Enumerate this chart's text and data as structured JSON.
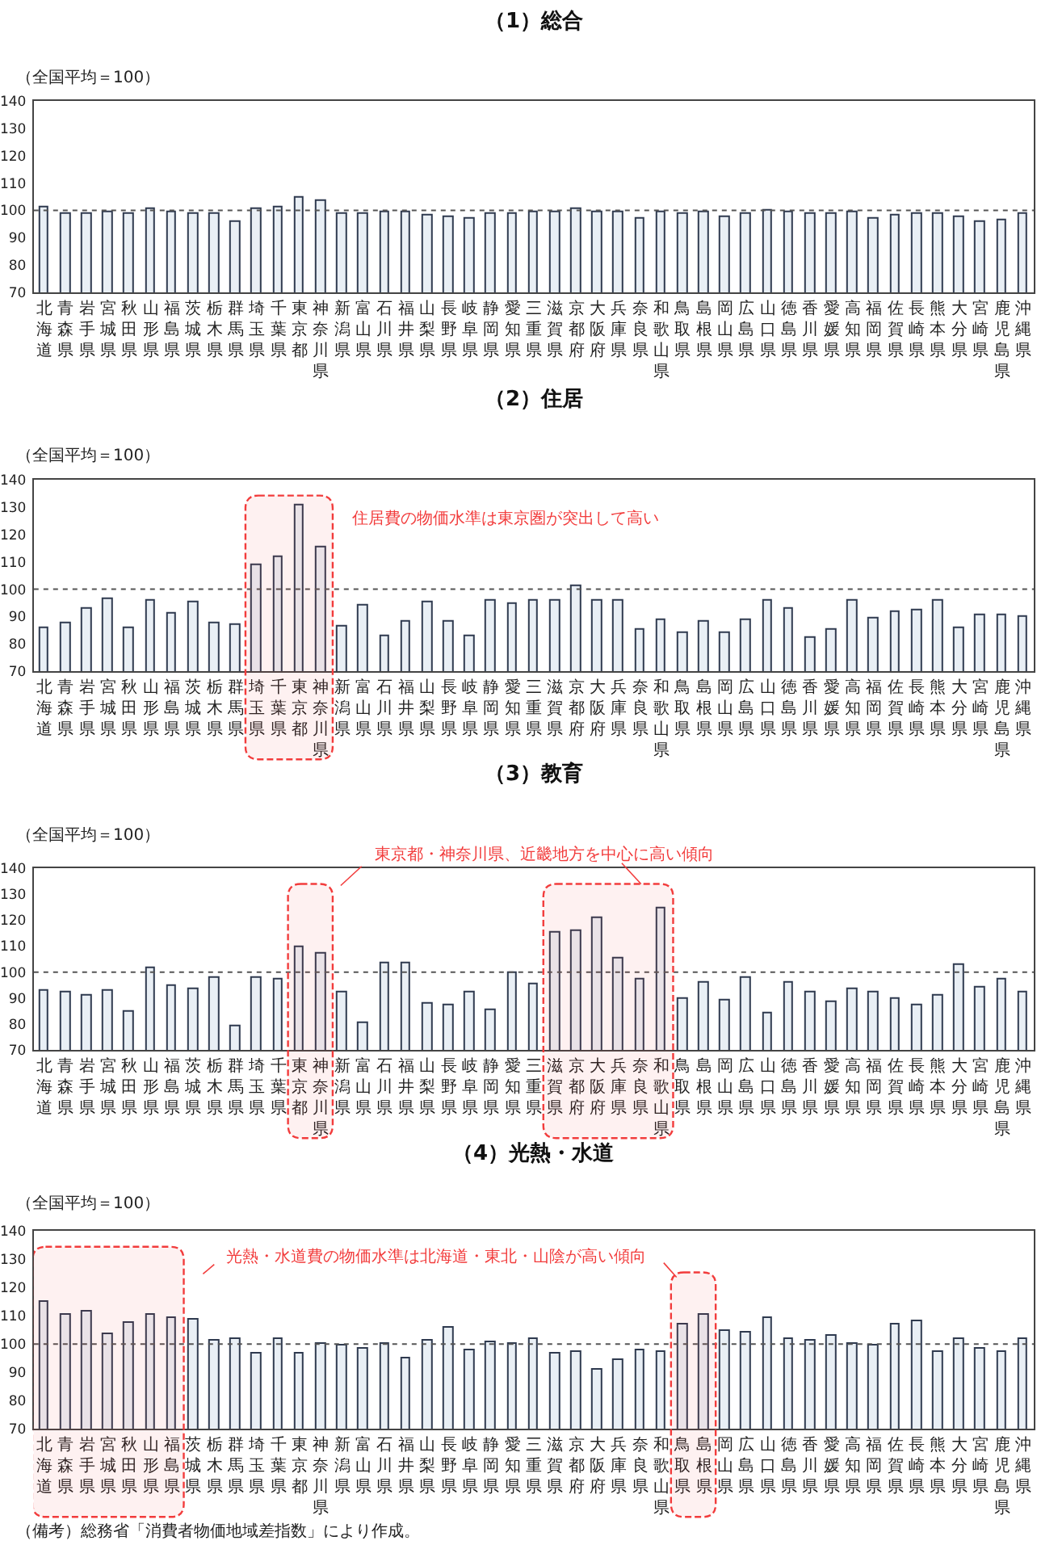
{
  "chart_data": [
    {
      "type": "bar",
      "title": "（1）総合",
      "ylabel": "（全国平均＝100）",
      "categories": [
        "北海道",
        "青森県",
        "岩手県",
        "宮城県",
        "秋田県",
        "山形県",
        "福島県",
        "茨城県",
        "栃木県",
        "群馬県",
        "埼玉県",
        "千葉県",
        "東京都",
        "神奈川県",
        "新潟県",
        "富山県",
        "石川県",
        "福井県",
        "山梨県",
        "長野県",
        "岐阜県",
        "静岡県",
        "愛知県",
        "三重県",
        "滋賀県",
        "京都府",
        "大阪府",
        "兵庫県",
        "奈良県",
        "和歌山県",
        "鳥取県",
        "島根県",
        "岡山県",
        "広島県",
        "山口県",
        "徳島県",
        "香川県",
        "愛媛県",
        "高知県",
        "福岡県",
        "佐賀県",
        "長崎県",
        "熊本県",
        "大分県",
        "宮崎県",
        "鹿児島県",
        "沖縄県"
      ],
      "values": [
        101,
        98.5,
        99,
        99.5,
        99,
        100.5,
        99.5,
        98.5,
        98.5,
        96,
        100.5,
        101,
        104.5,
        103.5,
        98.5,
        98.5,
        99.5,
        99.5,
        98,
        97.5,
        97,
        98.5,
        98.5,
        99.5,
        99.5,
        100.5,
        99.5,
        99.5,
        97,
        99.5,
        98.5,
        99.5,
        97.5,
        98.5,
        100,
        99.5,
        98.5,
        98.5,
        99.5,
        97,
        98,
        99,
        99,
        97.5,
        96,
        96.5,
        99
      ],
      "color": "#e9eff5",
      "ylim": [
        70,
        140
      ],
      "yticks": [
        70,
        80,
        90,
        100,
        110,
        120,
        130,
        140
      ],
      "ref_lines": [
        {
          "axis": "y",
          "value": 100,
          "color": "#555555",
          "line_style": "dotted"
        }
      ]
    },
    {
      "type": "bar",
      "title": "（2）住居",
      "ylabel": "（全国平均＝100）",
      "categories": [
        "北海道",
        "青森県",
        "岩手県",
        "宮城県",
        "秋田県",
        "山形県",
        "福島県",
        "茨城県",
        "栃木県",
        "群馬県",
        "埼玉県",
        "千葉県",
        "東京都",
        "神奈川県",
        "新潟県",
        "富山県",
        "石川県",
        "福井県",
        "山梨県",
        "長野県",
        "岐阜県",
        "静岡県",
        "愛知県",
        "三重県",
        "滋賀県",
        "京都府",
        "大阪府",
        "兵庫県",
        "奈良県",
        "和歌山県",
        "鳥取県",
        "島根県",
        "岡山県",
        "広島県",
        "山口県",
        "徳島県",
        "香川県",
        "愛媛県",
        "高知県",
        "福岡県",
        "佐賀県",
        "長崎県",
        "熊本県",
        "大分県",
        "宮崎県",
        "鹿児島県",
        "沖縄県"
      ],
      "values": [
        86,
        87.5,
        93,
        96.5,
        86,
        96,
        91,
        95,
        87.5,
        87,
        109,
        112,
        130.5,
        115,
        86.5,
        94,
        83,
        88,
        95,
        88,
        83,
        96,
        94.5,
        95.5,
        95.5,
        101,
        95.5,
        95.5,
        85,
        89,
        84,
        88,
        84,
        89,
        96,
        93,
        82,
        85,
        95.5,
        89.5,
        91.5,
        92,
        95.5,
        86,
        90.5,
        90.5,
        90
      ],
      "color": "#e9eff5",
      "ylim": [
        70,
        140
      ],
      "yticks": [
        70,
        80,
        90,
        100,
        110,
        120,
        130,
        140
      ],
      "ref_lines": [
        {
          "axis": "y",
          "value": 100,
          "color": "#555555",
          "line_style": "dotted"
        }
      ],
      "bands": [
        {
          "axis": "x",
          "from": "埼玉県",
          "to": "神奈川県",
          "label": "住居費の物価水準は東京圏が突出して高い",
          "color": "#f23c3c"
        }
      ]
    },
    {
      "type": "bar",
      "title": "（3）教育",
      "ylabel": "（全国平均＝100）",
      "categories": [
        "北海道",
        "青森県",
        "岩手県",
        "宮城県",
        "秋田県",
        "山形県",
        "福島県",
        "茨城県",
        "栃木県",
        "群馬県",
        "埼玉県",
        "千葉県",
        "東京都",
        "神奈川県",
        "新潟県",
        "富山県",
        "石川県",
        "福井県",
        "山梨県",
        "長野県",
        "岐阜県",
        "静岡県",
        "愛知県",
        "三重県",
        "滋賀県",
        "京都府",
        "大阪府",
        "兵庫県",
        "奈良県",
        "和歌山県",
        "鳥取県",
        "島根県",
        "岡山県",
        "広島県",
        "山口県",
        "徳島県",
        "香川県",
        "愛媛県",
        "高知県",
        "福岡県",
        "佐賀県",
        "長崎県",
        "熊本県",
        "大分県",
        "宮崎県",
        "鹿児島県",
        "沖縄県"
      ],
      "values": [
        93,
        92.5,
        91,
        93,
        85,
        101.5,
        94.5,
        93.5,
        98,
        79,
        98,
        97,
        109.5,
        107,
        92.5,
        80.5,
        103.5,
        103.5,
        88,
        87.5,
        92,
        85.5,
        99.5,
        95.5,
        115,
        115.5,
        121,
        105,
        97,
        124.5,
        89.5,
        96,
        89,
        97.5,
        84,
        96,
        92.5,
        88.5,
        93.5,
        92.5,
        89.5,
        87,
        91,
        103,
        94,
        97,
        92
      ],
      "color": "#e9eff5",
      "ylim": [
        70,
        140
      ],
      "yticks": [
        70,
        80,
        90,
        100,
        110,
        120,
        130,
        140
      ],
      "ref_lines": [
        {
          "axis": "y",
          "value": 100,
          "color": "#555555",
          "line_style": "dotted"
        }
      ],
      "bands": [
        {
          "axis": "x",
          "from": "東京都",
          "to": "神奈川県",
          "label": "東京都・神奈川県、近畿地方を中心に高い傾向",
          "color": "#f23c3c"
        },
        {
          "axis": "x",
          "from": "滋賀県",
          "to": "和歌山県",
          "color": "#f23c3c"
        }
      ]
    },
    {
      "type": "bar",
      "title": "（4）光熱・水道",
      "ylabel": "（全国平均＝100）",
      "categories": [
        "北海道",
        "青森県",
        "岩手県",
        "宮城県",
        "秋田県",
        "山形県",
        "福島県",
        "茨城県",
        "栃木県",
        "群馬県",
        "埼玉県",
        "千葉県",
        "東京都",
        "神奈川県",
        "新潟県",
        "富山県",
        "石川県",
        "福井県",
        "山梨県",
        "長野県",
        "岐阜県",
        "静岡県",
        "愛知県",
        "三重県",
        "滋賀県",
        "京都府",
        "大阪府",
        "兵庫県",
        "奈良県",
        "和歌山県",
        "鳥取県",
        "島根県",
        "岡山県",
        "広島県",
        "山口県",
        "徳島県",
        "香川県",
        "愛媛県",
        "高知県",
        "福岡県",
        "佐賀県",
        "長崎県",
        "熊本県",
        "大分県",
        "宮崎県",
        "鹿児島県",
        "沖縄県"
      ],
      "values": [
        115,
        110.5,
        111.5,
        103.5,
        107.5,
        110.5,
        109,
        108.5,
        101,
        102,
        96.5,
        102,
        96.5,
        100,
        99.5,
        98.5,
        100,
        95,
        101,
        106,
        98,
        100.5,
        100,
        101.5,
        96.5,
        97.5,
        91,
        94.5,
        98,
        97,
        107,
        110.5,
        104.5,
        104,
        109,
        102,
        101,
        103,
        100,
        99.5,
        107,
        108,
        97.5,
        101.5,
        98.5,
        97,
        102
      ],
      "color": "#e9eff5",
      "ylim": [
        70,
        140
      ],
      "yticks": [
        70,
        80,
        90,
        100,
        110,
        120,
        130,
        140
      ],
      "ref_lines": [
        {
          "axis": "y",
          "value": 100,
          "color": "#555555",
          "line_style": "dotted"
        }
      ],
      "bands": [
        {
          "axis": "x",
          "from": "北海道",
          "to": "福島県",
          "label": "光熱・水道費の物価水準は北海道・東北・山陰が高い傾向",
          "color": "#f23c3c"
        },
        {
          "axis": "x",
          "from": "鳥取県",
          "to": "島根県",
          "color": "#f23c3c"
        }
      ],
      "annotations": [
        "（備考）総務省「消費者物価地域差指数」により作成。"
      ]
    }
  ]
}
